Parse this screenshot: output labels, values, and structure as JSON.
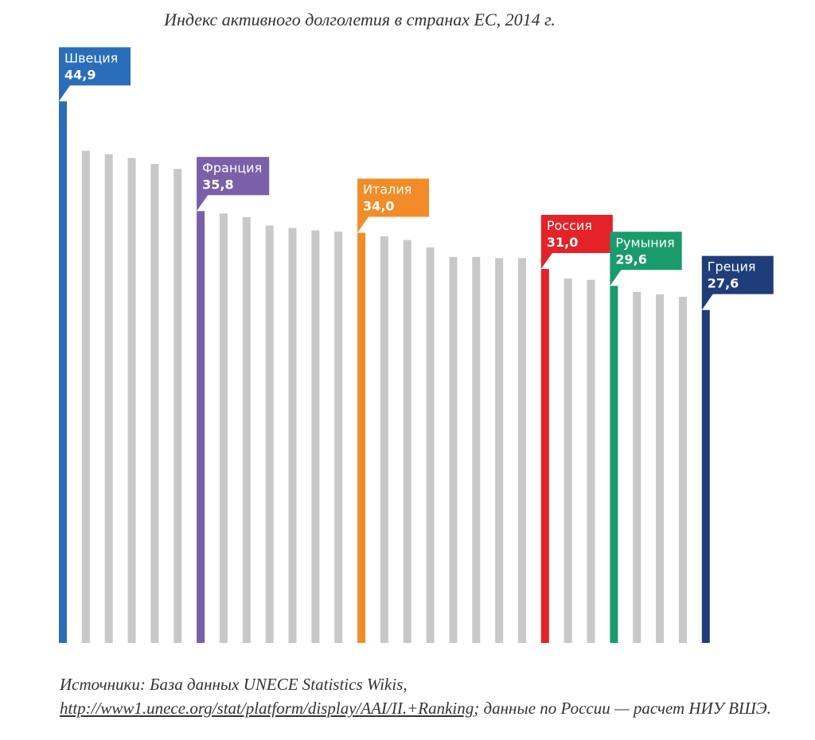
{
  "title": "Индекс активного долголетия в странах ЕС, 2014 г.",
  "source": {
    "prefix": "Источники: База данных UNECE Statistics Wikis, ",
    "link_text": "http://www1.unece.org/stat/platform/display/AAI/II.+Ranking",
    "suffix": "; данные по России — расчет НИУ ВШЭ."
  },
  "colors": {
    "default_bar": "#c8c8c8",
    "Швеция": "#2a6ebb",
    "Франция": "#7b5fa8",
    "Италия": "#f28c28",
    "Россия": "#e42228",
    "Румыния": "#1a9b6b",
    "Греция": "#1f3d7a"
  },
  "chart_data": {
    "type": "bar",
    "title": "Индекс активного долголетия в странах ЕС, 2014 г.",
    "ylim": [
      0,
      45
    ],
    "grid": false,
    "values": [
      44.9,
      40.8,
      40.5,
      40.2,
      39.7,
      39.3,
      35.8,
      35.6,
      35.3,
      34.6,
      34.4,
      34.2,
      34.1,
      34.0,
      33.7,
      33.4,
      32.8,
      32.0,
      32.0,
      31.9,
      31.9,
      31.0,
      30.2,
      30.1,
      29.6,
      29.1,
      28.9,
      28.7,
      27.6
    ],
    "labeled": [
      {
        "index": 0,
        "name": "Швеция",
        "value": "44,9"
      },
      {
        "index": 6,
        "name": "Франция",
        "value": "35,8"
      },
      {
        "index": 13,
        "name": "Италия",
        "value": "34,0"
      },
      {
        "index": 21,
        "name": "Россия",
        "value": "31,0"
      },
      {
        "index": 24,
        "name": "Румыния",
        "value": "29,6"
      },
      {
        "index": 28,
        "name": "Греция",
        "value": "27,6"
      }
    ]
  }
}
